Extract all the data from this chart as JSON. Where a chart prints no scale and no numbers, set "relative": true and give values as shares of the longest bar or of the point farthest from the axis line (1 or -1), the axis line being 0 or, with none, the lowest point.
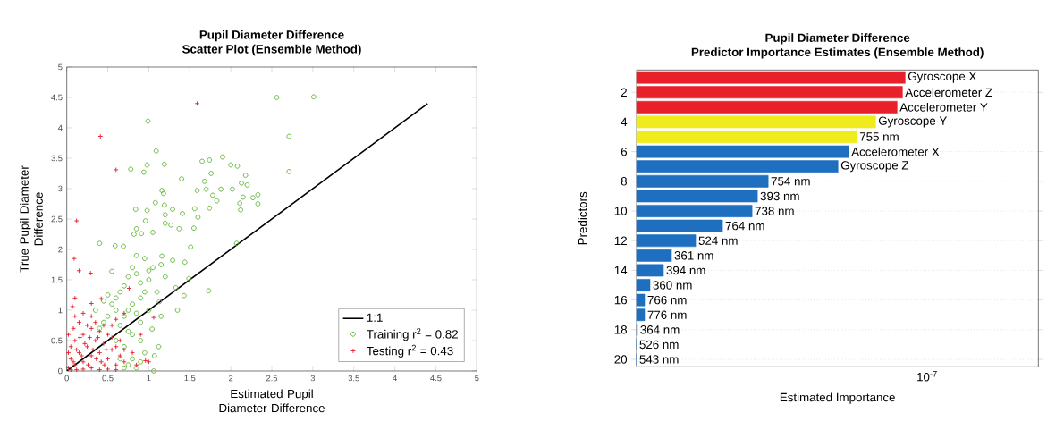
{
  "chart_data": [
    {
      "type": "scatter",
      "title": "Pupil Diameter Difference",
      "subtitle": "Scatter Plot (Ensemble Method)",
      "xlabel": "Estimated Pupil Diameter Difference",
      "ylabel": "True Pupil Diameter Difference",
      "xlim": [
        0,
        5
      ],
      "ylim": [
        0,
        5
      ],
      "xticks": [
        0,
        0.5,
        1,
        1.5,
        2,
        2.5,
        3,
        3.5,
        4,
        4.5,
        5
      ],
      "yticks": [
        0,
        0.5,
        1,
        1.5,
        2,
        2.5,
        3,
        3.5,
        4,
        4.5,
        5
      ],
      "grid": false,
      "legend": "bottom right",
      "series": [
        {
          "name": "1:1",
          "type": "line",
          "color": "#000000",
          "marker": "none",
          "line_style": "solid",
          "x": [
            0,
            4.4
          ],
          "values": [
            0,
            4.4
          ]
        },
        {
          "name": "Training r$^{2}$ = 0.82",
          "color": "#5cb531",
          "marker": "circle",
          "x": [
            2.56,
            3.01,
            0.99,
            2.71,
            2.71,
            1.09,
            0.98,
            1.19,
            0.78,
            0.94,
            1.65,
            1.74,
            1.9,
            2.0,
            2.08,
            2.18,
            1.76,
            1.4,
            1.68,
            2.13,
            2.2,
            1.59,
            1.7,
            1.88,
            2.02,
            2.33,
            1.16,
            1.18,
            1.78,
            2.15,
            2.27,
            1.08,
            1.19,
            2.33,
            2.11,
            1.83,
            0.84,
            0.98,
            1.29,
            1.41,
            1.56,
            1.74,
            1.2,
            1.6,
            2.12,
            0.96,
            1.2,
            1.27,
            0.85,
            1.05,
            1.37,
            1.55,
            0.82,
            0.91,
            0.4,
            0.59,
            0.69,
            1.51,
            2.07,
            0.85,
            1.16,
            1.29,
            1.44,
            0.55,
            1.49,
            1.73,
            1.35,
            1.33,
            1.43,
            1.13,
            1.15,
            1.12,
            1.07,
            1.06,
            1.04,
            0.8,
            0.75,
            0.85,
            0.9,
            0.7,
            0.65,
            0.6,
            0.95,
            1.0,
            1.05,
            0.9,
            0.8,
            0.75,
            0.7,
            0.85,
            0.6,
            0.5,
            0.55,
            0.45,
            0.4,
            0.5,
            0.45,
            0.35,
            0.65,
            0.75,
            0.9,
            1.0,
            1.1,
            1.0,
            0.8,
            0.6,
            0.7,
            0.8,
            0.75,
            0.85,
            0.7,
            0.9,
            0.65,
            1.2,
            1.15,
            0.95,
            0.9,
            0.95
          ],
          "values": [
            4.5,
            4.51,
            4.11,
            3.86,
            3.28,
            3.62,
            3.39,
            3.4,
            3.32,
            3.27,
            3.45,
            3.47,
            3.52,
            3.39,
            3.37,
            3.22,
            3.25,
            3.16,
            3.12,
            3.09,
            3.06,
            2.97,
            2.99,
            2.99,
            2.99,
            2.9,
            2.97,
            2.92,
            2.89,
            2.86,
            2.85,
            2.77,
            2.73,
            2.75,
            2.76,
            2.8,
            2.66,
            2.64,
            2.66,
            2.59,
            2.67,
            2.68,
            2.57,
            2.53,
            2.65,
            2.47,
            2.43,
            2.4,
            2.34,
            2.28,
            2.34,
            2.35,
            2.25,
            2.26,
            2.1,
            2.06,
            2.05,
            2.04,
            2.1,
            1.9,
            1.89,
            1.82,
            1.79,
            1.64,
            1.52,
            1.32,
            1.0,
            1.37,
            1.24,
            1.14,
            0.9,
            0.4,
            0.25,
            0.0,
            0.69,
            1.7,
            1.55,
            1.6,
            1.45,
            1.4,
            1.3,
            1.2,
            1.3,
            1.5,
            1.7,
            1.2,
            1.1,
            1.0,
            0.9,
            0.95,
            1.0,
            0.9,
            1.1,
            0.8,
            0.7,
            1.25,
            1.15,
            1.0,
            0.75,
            0.65,
            0.8,
            1.0,
            1.3,
            1.65,
            0.6,
            0.5,
            0.4,
            0.2,
            0.1,
            0.05,
            0.05,
            0.15,
            0.2,
            1.55,
            1.75,
            1.85,
            0.5,
            0.3
          ]
        },
        {
          "name": "Testing r$^{2}$ = 0.43",
          "color": "#e8202a",
          "marker": "cross",
          "x": [
            1.59,
            0.41,
            0.6,
            0.12,
            0.09,
            0.15,
            0.29,
            0.1,
            0.07,
            0.3,
            0.42,
            0.76,
            1.06,
            0.96,
            0.02,
            0.05,
            0.1,
            0.15,
            0.2,
            0.25,
            0.3,
            0.35,
            0.4,
            0.45,
            0.5,
            0.55,
            0.6,
            0.5,
            0.4,
            0.3,
            0.2,
            0.1,
            0.05,
            0.08,
            0.15,
            0.25,
            0.35,
            0.45,
            0.55,
            0.6,
            0.65,
            0.7,
            0.05,
            0.12,
            0.2,
            0.3,
            0.4,
            0.5,
            0.6,
            0.02,
            0.02,
            0.1,
            0.2,
            0.3,
            0.12,
            0.22,
            0.32,
            0.42,
            0.28,
            0.18,
            0.38,
            0.48,
            0.08,
            0.16,
            0.26,
            0.36,
            0.46,
            0.55,
            0.65,
            0.7,
            0.8,
            0.85,
            1.0,
            0.9,
            0.6,
            0.7
          ],
          "values": [
            4.4,
            3.86,
            3.31,
            2.47,
            1.85,
            1.65,
            1.61,
            1.2,
            1.06,
            1.11,
            1.19,
            1.36,
            0.88,
            0.17,
            0.05,
            0.2,
            0.1,
            0.3,
            0.15,
            0.4,
            0.25,
            0.5,
            0.3,
            0.45,
            0.2,
            0.35,
            0.1,
            0.6,
            0.65,
            0.7,
            0.6,
            0.5,
            0.4,
            0.7,
            0.8,
            0.75,
            0.8,
            0.75,
            0.55,
            0.4,
            0.25,
            0.15,
            0.02,
            0.02,
            0.03,
            0.05,
            0.02,
            0.03,
            0.02,
            0.3,
            0.6,
            0.9,
            0.95,
            0.9,
            0.35,
            0.45,
            0.35,
            0.15,
            0.55,
            0.25,
            0.55,
            0.35,
            0.15,
            0.55,
            0.1,
            0.2,
            0.1,
            0.75,
            0.5,
            0.35,
            0.3,
            0.1,
            0.15,
            0.6,
            0.85,
            0.95
          ]
        }
      ]
    },
    {
      "type": "bar",
      "orientation": "horizontal",
      "title": "Pupil Diameter Difference",
      "subtitle": "Predictor Importance Estimates (Ensemble Method)",
      "xlabel": "Estimated Importance",
      "ylabel": "Predictors",
      "grid": true,
      "relative": true,
      "categories": [
        null,
        "2",
        null,
        "4",
        null,
        "6",
        null,
        "8",
        null,
        "10",
        null,
        "12",
        null,
        "14",
        null,
        "16",
        null,
        "18",
        null,
        "20"
      ],
      "values": [
        1,
        0.99,
        0.97,
        0.89,
        0.82,
        0.79,
        0.75,
        0.49,
        0.45,
        0.43,
        0.32,
        0.22,
        0.13,
        0.1,
        0.05,
        0.03,
        0.03,
        0.003,
        0,
        0
      ],
      "colors": [
        "#e8202a",
        "#e8202a",
        "#e8202a",
        "#f0ec1c",
        "#f0ec1c",
        "#1f6fc0",
        "#1f6fc0",
        "#1f6fc0",
        "#1f6fc0",
        "#1f6fc0",
        "#1f6fc0",
        "#1f6fc0",
        "#1f6fc0",
        "#1f6fc0",
        "#1f6fc0",
        "#1f6fc0",
        "#1f6fc0",
        "#1f6fc0",
        "#1f6fc0",
        "#1f6fc0"
      ],
      "annotations": [
        "Gyroscope X",
        "Accelerometer Z",
        "Accelerometer Y",
        "Gyroscope Y",
        "755 nm",
        "Accelerometer X",
        "Gyroscope Z",
        "754 nm",
        "393 nm",
        "738 nm",
        "764 nm",
        "524 nm",
        "361 nm",
        "394 nm",
        "360 nm",
        "766 nm",
        "776 nm",
        "364 nm",
        "526 nm",
        "543 nm",
        "10$^{-7}$"
      ]
    }
  ]
}
